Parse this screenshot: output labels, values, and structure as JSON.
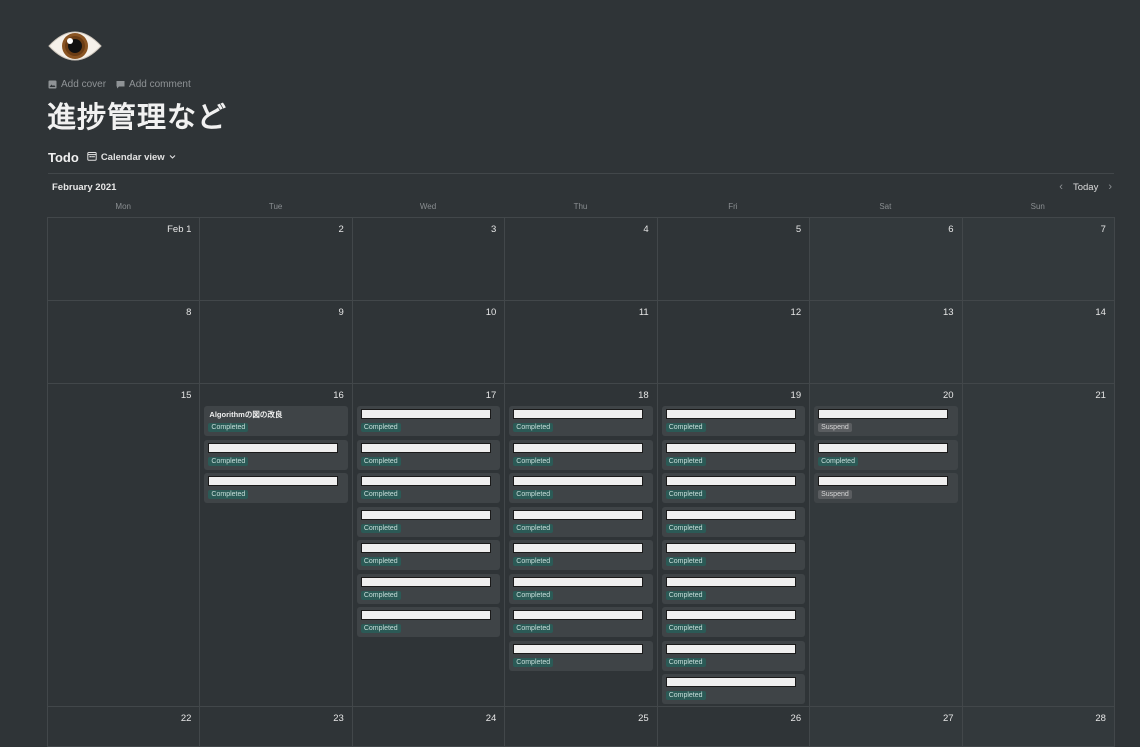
{
  "page": {
    "icon": "eye-emoji",
    "title": "進捗管理など",
    "add_cover": "Add cover",
    "add_comment": "Add comment"
  },
  "database": {
    "title": "Todo",
    "view_label": "Calendar view"
  },
  "calendar": {
    "month_label": "February 2021",
    "today_label": "Today",
    "weekdays": [
      "Mon",
      "Tue",
      "Wed",
      "Thu",
      "Fri",
      "Sat",
      "Sun"
    ],
    "weeks": [
      {
        "days": [
          {
            "label": "Feb 1",
            "cards": []
          },
          {
            "label": "2",
            "cards": []
          },
          {
            "label": "3",
            "cards": []
          },
          {
            "label": "4",
            "cards": []
          },
          {
            "label": "5",
            "cards": []
          },
          {
            "label": "6",
            "cards": []
          },
          {
            "label": "7",
            "cards": []
          }
        ]
      },
      {
        "days": [
          {
            "label": "8",
            "cards": []
          },
          {
            "label": "9",
            "cards": []
          },
          {
            "label": "10",
            "cards": []
          },
          {
            "label": "11",
            "cards": []
          },
          {
            "label": "12",
            "cards": []
          },
          {
            "label": "13",
            "cards": []
          },
          {
            "label": "14",
            "cards": []
          }
        ]
      },
      {
        "days": [
          {
            "label": "15",
            "cards": []
          },
          {
            "label": "16",
            "cards": [
              {
                "title": "Algorithmの図の改良",
                "status": "Completed"
              },
              {
                "title": "",
                "status": "Completed"
              },
              {
                "title": "",
                "status": "Completed"
              }
            ]
          },
          {
            "label": "17",
            "cards": [
              {
                "title": "",
                "status": "Completed"
              },
              {
                "title": "",
                "status": "Completed"
              },
              {
                "title": "",
                "status": "Completed"
              },
              {
                "title": "",
                "status": "Completed"
              },
              {
                "title": "",
                "status": "Completed"
              },
              {
                "title": "",
                "status": "Completed"
              },
              {
                "title": "",
                "status": "Completed"
              }
            ]
          },
          {
            "label": "18",
            "cards": [
              {
                "title": "",
                "status": "Completed"
              },
              {
                "title": "",
                "status": "Completed"
              },
              {
                "title": "",
                "status": "Completed"
              },
              {
                "title": "",
                "status": "Completed"
              },
              {
                "title": "",
                "status": "Completed"
              },
              {
                "title": "",
                "status": "Completed"
              },
              {
                "title": "",
                "status": "Completed"
              },
              {
                "title": "",
                "status": "Completed"
              }
            ]
          },
          {
            "label": "19",
            "cards": [
              {
                "title": "",
                "status": "Completed"
              },
              {
                "title": "",
                "status": "Completed"
              },
              {
                "title": "",
                "status": "Completed"
              },
              {
                "title": "",
                "status": "Completed"
              },
              {
                "title": "",
                "status": "Completed"
              },
              {
                "title": "",
                "status": "Completed"
              },
              {
                "title": "",
                "status": "Completed"
              },
              {
                "title": "",
                "status": "Completed"
              },
              {
                "title": "",
                "status": "Completed"
              }
            ]
          },
          {
            "label": "20",
            "cards": [
              {
                "title": "",
                "status": "Suspend"
              },
              {
                "title": "",
                "status": "Completed"
              },
              {
                "title": "",
                "status": "Suspend"
              }
            ]
          },
          {
            "label": "21",
            "cards": []
          }
        ]
      },
      {
        "days": [
          {
            "label": "22",
            "cards": []
          },
          {
            "label": "23",
            "cards": []
          },
          {
            "label": "24",
            "cards": []
          },
          {
            "label": "25",
            "cards": []
          },
          {
            "label": "26",
            "cards": []
          },
          {
            "label": "27",
            "cards": []
          },
          {
            "label": "28",
            "cards": []
          }
        ]
      }
    ]
  },
  "colors": {
    "completed_tag": "#2b5a56",
    "suspend_tag": "#5a5d60"
  }
}
